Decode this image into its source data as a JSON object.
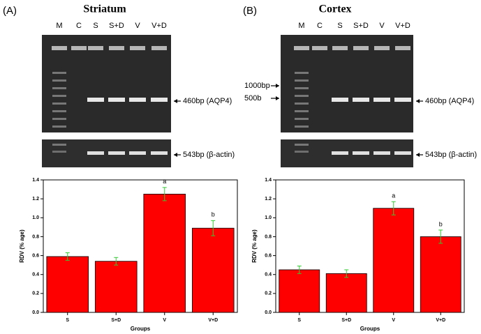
{
  "gels": [
    {
      "panel_label": "(A)",
      "title": "Striatum",
      "lanes": [
        "M",
        "C",
        "S",
        "S+D",
        "V",
        "V+D"
      ],
      "markers": [],
      "bands": [
        "460bp (AQP4)",
        "543bp (β-actin)"
      ]
    },
    {
      "panel_label": "(B)",
      "title": "Cortex",
      "lanes": [
        "M",
        "C",
        "S",
        "S+D",
        "V",
        "V+D"
      ],
      "markers": [
        "1000bp",
        "500b"
      ],
      "bands": [
        "460bp (AQP4)",
        "543bp (β-actin)"
      ]
    }
  ],
  "chart_data": [
    {
      "type": "bar",
      "x_label": "Groups",
      "y_label": "RDV (% age)",
      "categories": [
        "S",
        "S+D",
        "V",
        "V+D"
      ],
      "values": [
        0.59,
        0.54,
        1.25,
        0.89
      ],
      "errors": [
        0.04,
        0.04,
        0.07,
        0.08
      ],
      "color": "#ff0000",
      "error_color": "#33cc33",
      "annotations": [
        {
          "text": "a",
          "category": "V"
        },
        {
          "text": "b",
          "category": "V+D"
        }
      ],
      "ylim": [
        0,
        1.4
      ],
      "yticks": [
        {
          "value": 0,
          "label": "0.0"
        },
        0.2,
        0.4,
        0.6,
        0.8,
        {
          "value": 1,
          "label": "1.0"
        },
        1.2,
        1.4
      ]
    },
    {
      "type": "bar",
      "x_label": "Groups",
      "y_label": "RDV (% age)",
      "categories": [
        "S",
        "S+D",
        "V",
        "V+D"
      ],
      "values": [
        0.45,
        0.41,
        1.1,
        0.8
      ],
      "errors": [
        0.04,
        0.04,
        0.07,
        0.07
      ],
      "color": "#ff0000",
      "error_color": "#33cc33",
      "annotations": [
        {
          "text": "a",
          "category": "V"
        },
        {
          "text": "b",
          "category": "V+D"
        }
      ],
      "ylim": [
        0,
        1.4
      ],
      "yticks": [
        {
          "value": 0,
          "label": "0.0"
        },
        0.2,
        0.4,
        0.6,
        0.8,
        {
          "value": 1,
          "label": "1.0"
        },
        1.2,
        1.4
      ]
    }
  ]
}
